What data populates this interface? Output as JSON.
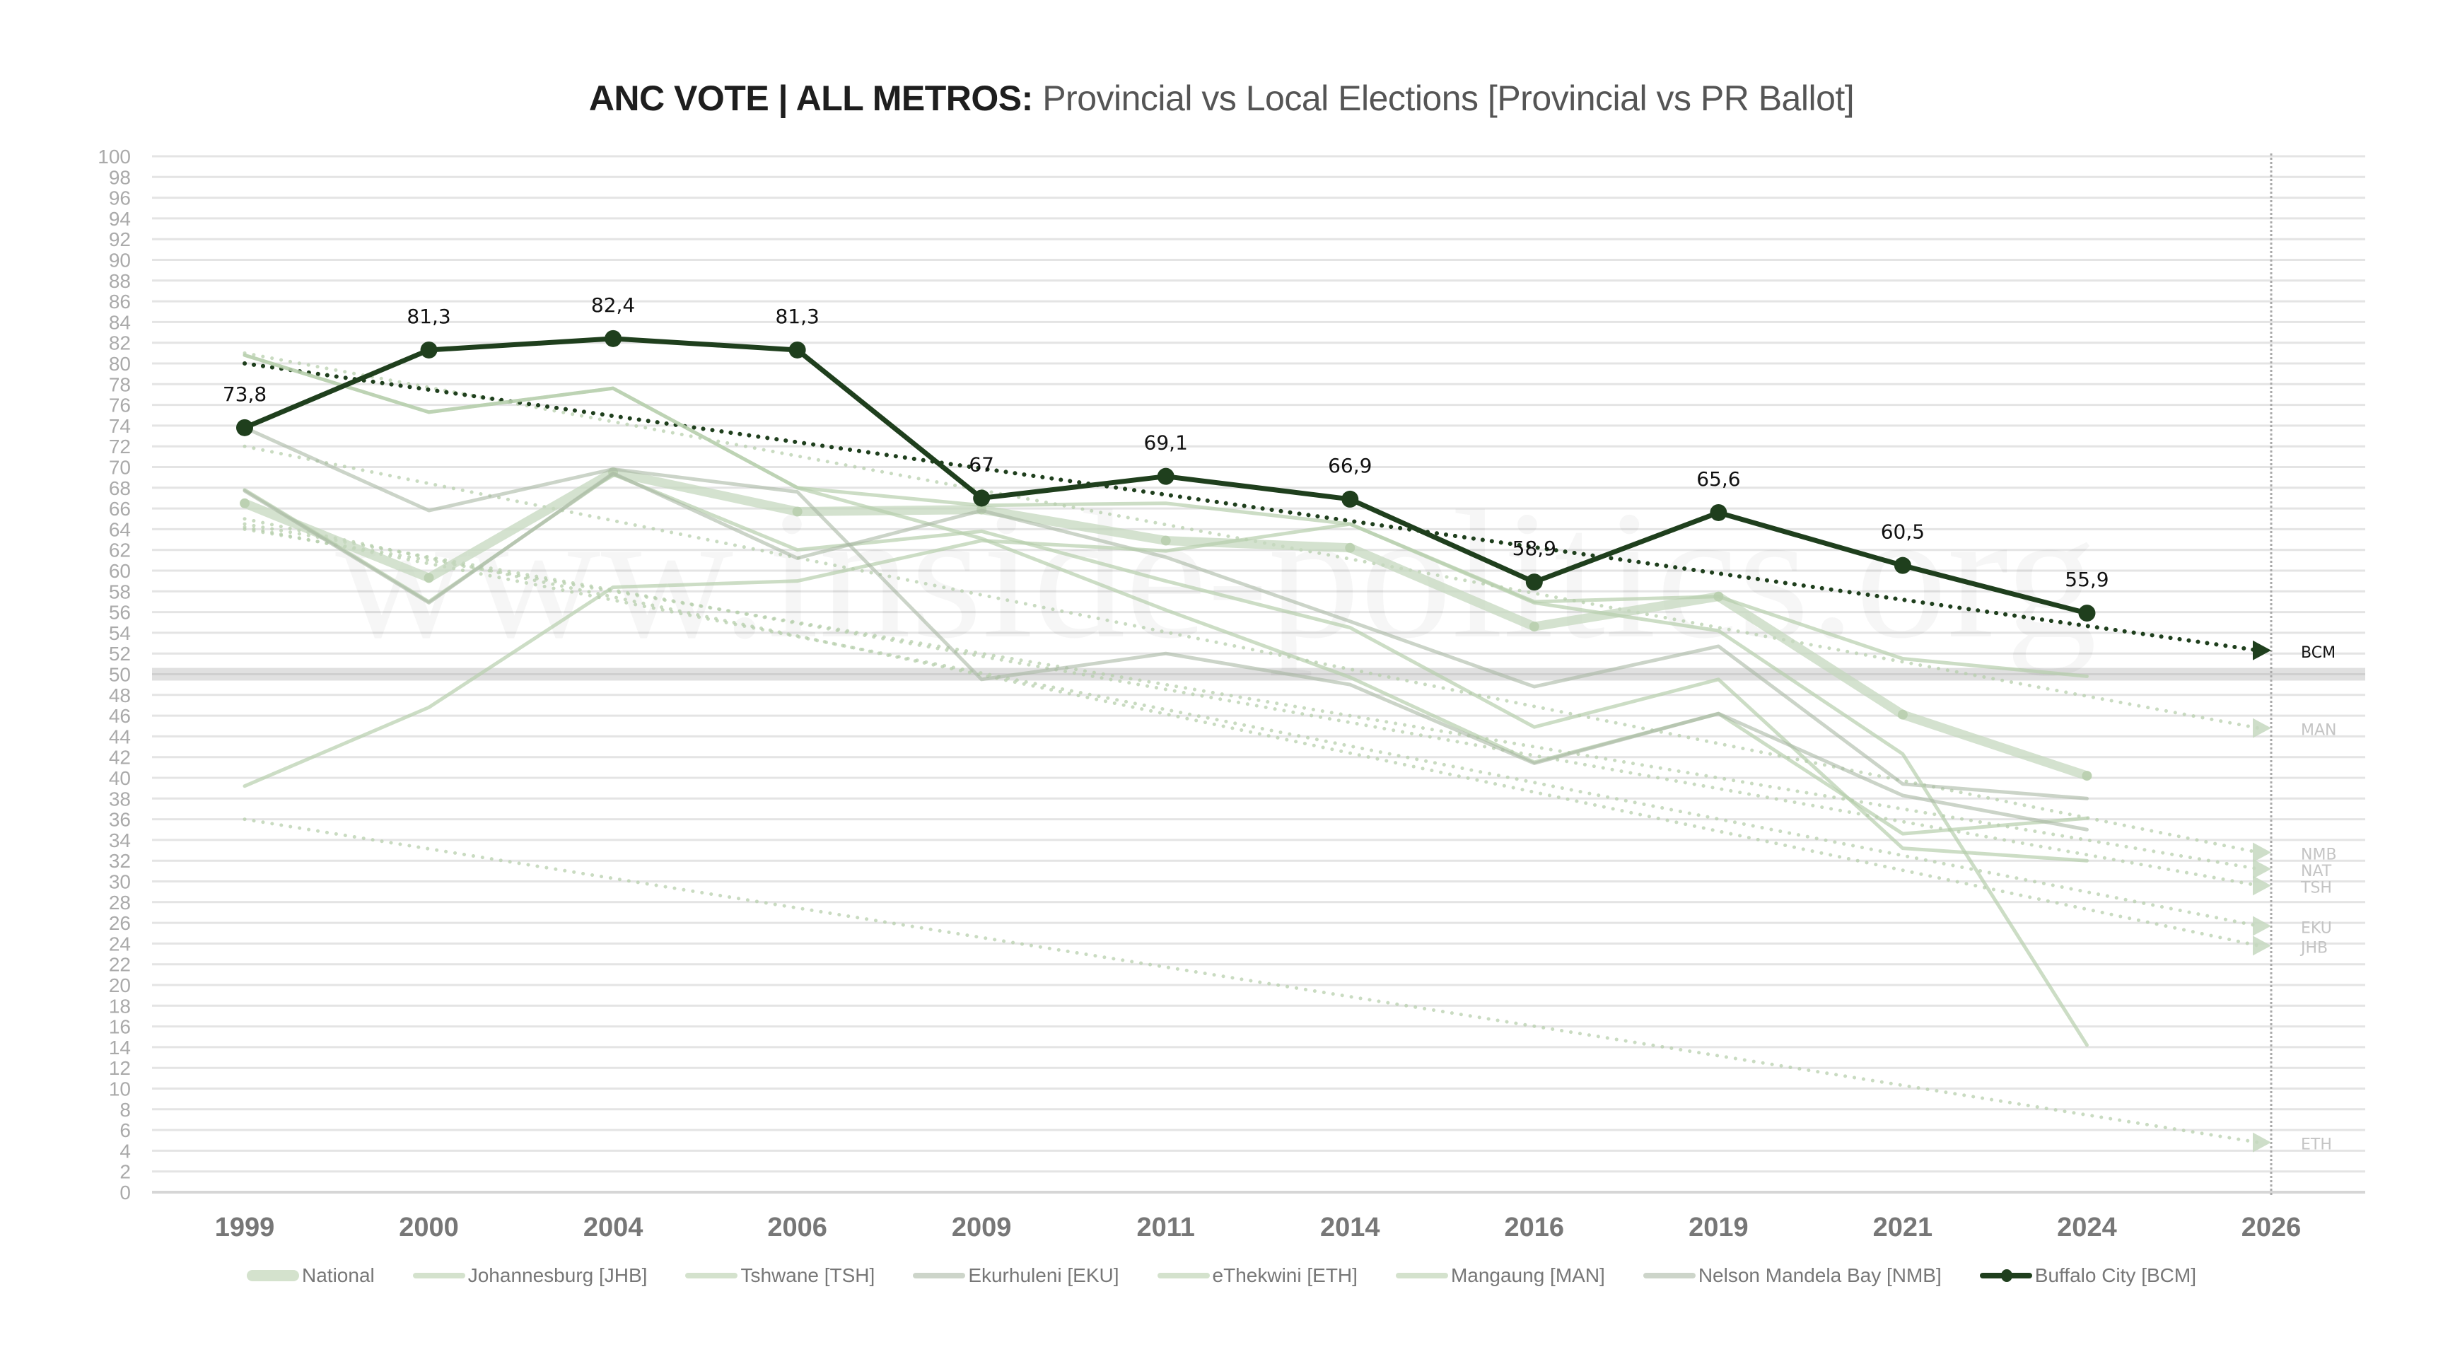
{
  "title": {
    "bold": "ANC VOTE | ALL METROS:",
    "rest": " Provincial vs Local Elections [Provincial vs PR Ballot]"
  },
  "watermark": "www.inside-politics.org",
  "colors": {
    "bcm": "#1f3f1d",
    "light_series": "#c6d8bf",
    "grey_series": "#c0c9bd",
    "grid": "#e4e4e4",
    "threshold": "#d8d8d8",
    "axis_text": "#aaaaaa",
    "tick_text": "#777777"
  },
  "chart_data": {
    "type": "line",
    "title": "ANC VOTE | ALL METROS: Provincial vs Local Elections [Provincial vs PR Ballot]",
    "xlabel": "",
    "ylabel": "",
    "categories": [
      "1999",
      "2000",
      "2004",
      "2006",
      "2009",
      "2011",
      "2014",
      "2016",
      "2019",
      "2021",
      "2024",
      "2026"
    ],
    "ylim": [
      0,
      100
    ],
    "ytick_step": 2,
    "grid": true,
    "legend_position": "bottom",
    "threshold_line": 50,
    "series": [
      {
        "key": "NAT",
        "name": "National",
        "style": "thick",
        "values": [
          66.5,
          59.3,
          69.5,
          65.7,
          65.9,
          62.9,
          62.2,
          54.6,
          57.5,
          46.1,
          40.2,
          null
        ],
        "trend": [
          64.0,
          31.2
        ]
      },
      {
        "key": "JHB",
        "name": "Johannesburg [JHB]",
        "style": "light",
        "values": [
          67.8,
          57.0,
          69.3,
          62.0,
          63.8,
          59.0,
          54.5,
          44.9,
          49.5,
          33.2,
          32.0,
          null
        ],
        "trend": [
          65.0,
          23.8
        ]
      },
      {
        "key": "TSH",
        "name": "Tshwane [TSH]",
        "style": "light",
        "values": [
          80.8,
          75.3,
          77.6,
          68.0,
          63.1,
          56.2,
          49.7,
          41.5,
          46.2,
          34.6,
          36.1,
          null
        ],
        "trend": [
          64.5,
          29.6
        ]
      },
      {
        "key": "EKU",
        "name": "Ekurhuleni [EKU]",
        "style": "grey",
        "values": [
          67.7,
          56.9,
          69.4,
          61.2,
          65.8,
          61.3,
          55.1,
          48.8,
          52.7,
          39.4,
          38.0,
          null
        ],
        "trend": [
          64.2,
          25.7
        ]
      },
      {
        "key": "ETH",
        "name": "eThekwini [ETH]",
        "style": "light",
        "values": [
          39.2,
          46.8,
          58.4,
          59.0,
          62.9,
          61.9,
          64.5,
          56.9,
          54.2,
          42.3,
          14.2,
          null
        ],
        "trend": [
          36.0,
          4.8
        ]
      },
      {
        "key": "MAN",
        "name": "Mangaung [MAN]",
        "style": "light",
        "values": [
          80.8,
          75.3,
          77.6,
          68.0,
          66.3,
          66.5,
          64.5,
          57.0,
          57.5,
          51.5,
          49.8,
          null
        ],
        "trend": [
          81.0,
          44.8
        ]
      },
      {
        "key": "NMB",
        "name": "Nelson Mandela Bay [NMB]",
        "style": "grey",
        "values": [
          73.8,
          65.8,
          69.8,
          67.6,
          49.5,
          52.0,
          49.0,
          41.4,
          46.2,
          38.3,
          35.0,
          null
        ],
        "trend": [
          72.0,
          32.8
        ]
      },
      {
        "key": "BCM",
        "name": "Buffalo City [BCM]",
        "style": "highlight",
        "values": [
          73.8,
          81.3,
          82.4,
          81.3,
          67,
          69.1,
          66.9,
          58.9,
          65.6,
          60.5,
          55.9,
          null
        ],
        "labels": [
          "73,8",
          "81,3",
          "82,4",
          "81,3",
          "67",
          "69,1",
          "66,9",
          "58,9",
          "65,6",
          "60,5",
          "55,9"
        ],
        "trend": [
          80.0,
          52.3
        ]
      }
    ],
    "end_labels": [
      {
        "key": "BCM",
        "text": "BCM",
        "value": 52.3
      },
      {
        "key": "MAN",
        "text": "MAN",
        "value": 44.8
      },
      {
        "key": "NMB",
        "text": "NMB",
        "value": 32.8
      },
      {
        "key": "NAT",
        "text": "NAT",
        "value": 31.2
      },
      {
        "key": "TSH",
        "text": "TSH",
        "value": 29.6
      },
      {
        "key": "EKU",
        "text": "EKU",
        "value": 25.7
      },
      {
        "key": "JHB",
        "text": "JHB",
        "value": 23.8
      },
      {
        "key": "ETH",
        "text": "ETH",
        "value": 4.8
      }
    ]
  }
}
